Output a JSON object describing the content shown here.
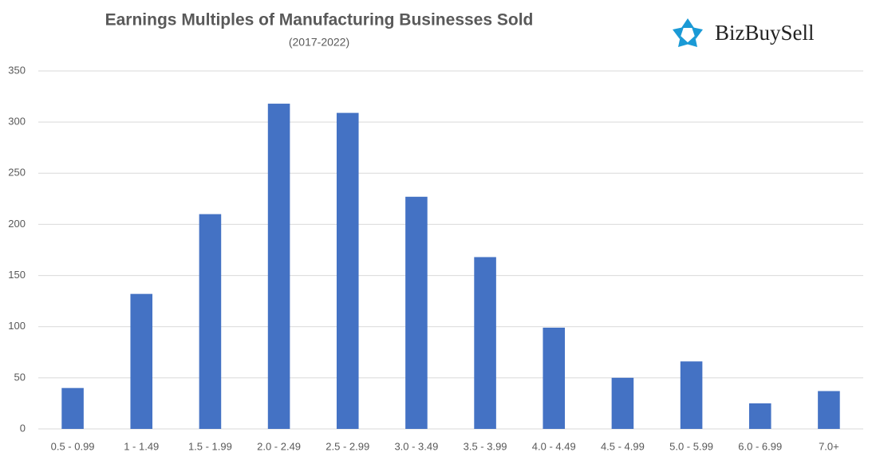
{
  "chart_data": {
    "type": "bar",
    "title": "Earnings Multiples of Manufacturing Businesses Sold",
    "subtitle": "(2017-2022)",
    "logo": "BizBuySell",
    "categories": [
      "0.5 - 0.99",
      "1 - 1.49",
      "1.5 - 1.99",
      "2.0 - 2.49",
      "2.5 - 2.99",
      "3.0 - 3.49",
      "3.5 - 3.99",
      "4.0 - 4.49",
      "4.5 - 4.99",
      "5.0 - 5.99",
      "6.0 - 6.99",
      "7.0+"
    ],
    "values": [
      40,
      132,
      210,
      318,
      309,
      227,
      168,
      99,
      50,
      66,
      25,
      37
    ],
    "color": "#4472c4",
    "ylim": [
      0,
      350
    ],
    "yticks": [
      0,
      50,
      100,
      150,
      200,
      250,
      300,
      350
    ],
    "grid": true
  }
}
